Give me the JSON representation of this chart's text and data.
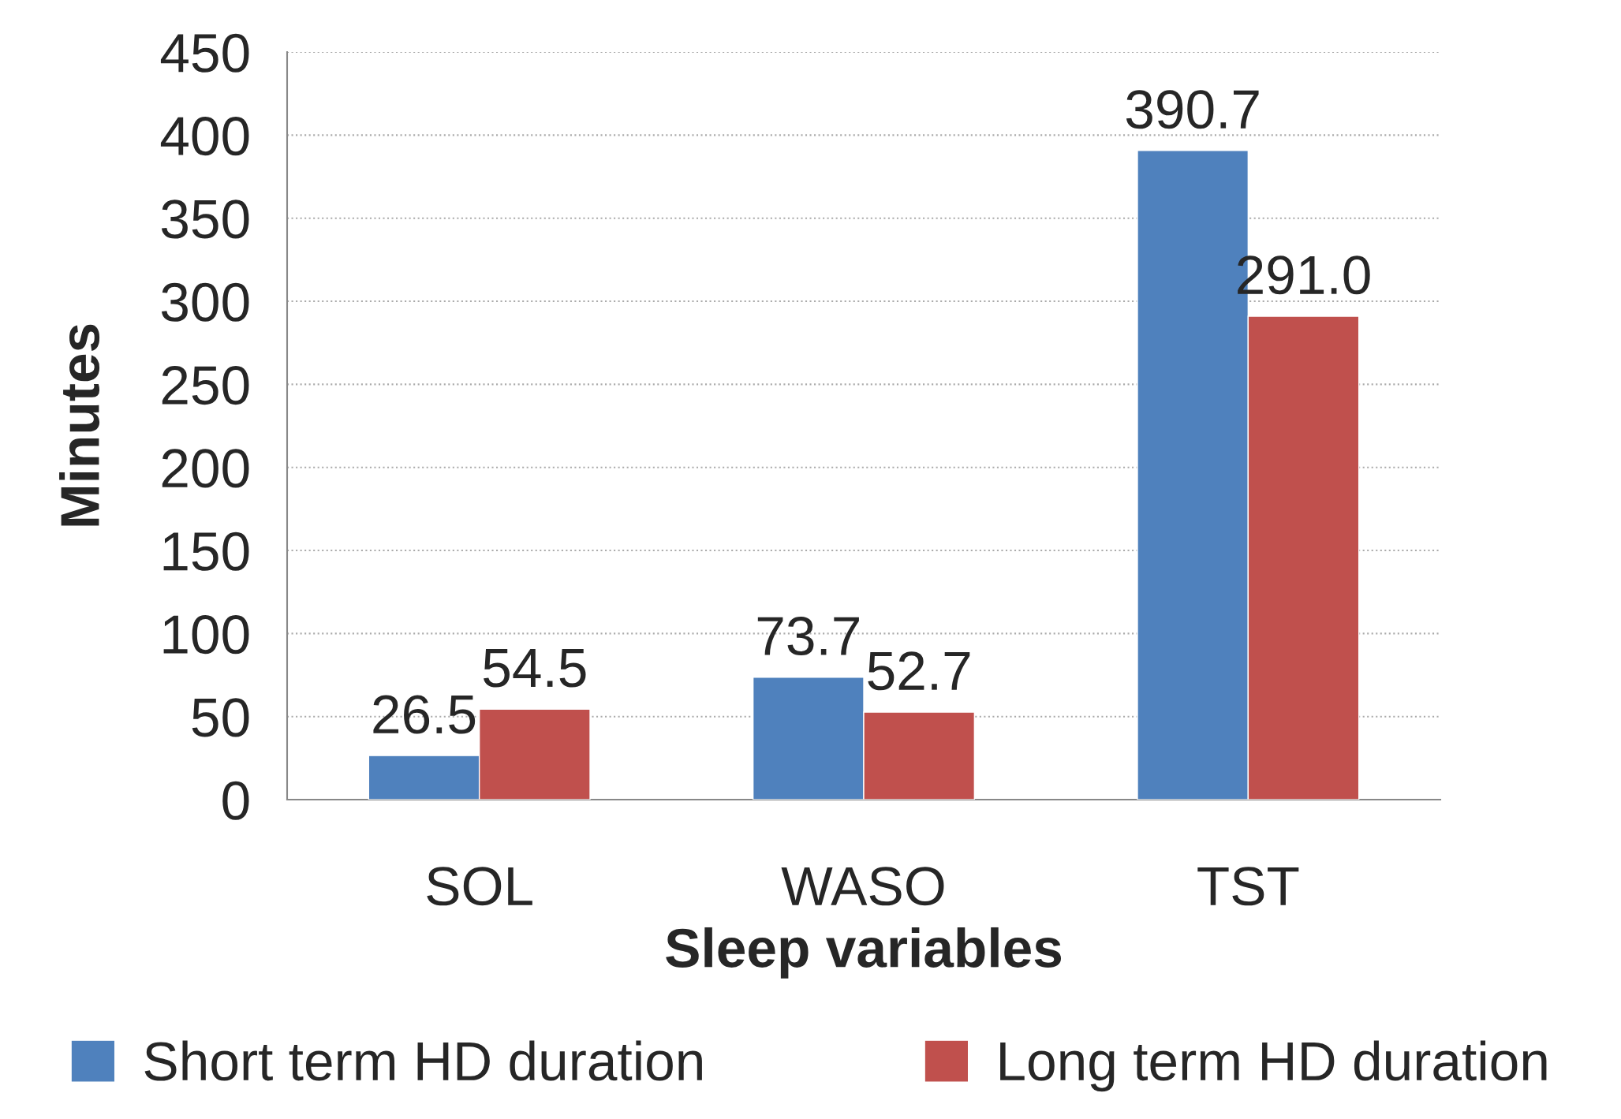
{
  "chart_data": {
    "type": "bar",
    "xlabel": "Sleep variables",
    "ylabel": "Minutes",
    "categories": [
      "SOL",
      "WASO",
      "TST"
    ],
    "series": [
      {
        "name": "Short term HD duration",
        "color": "#4f81bd",
        "values": [
          26.5,
          73.7,
          390.7
        ],
        "value_labels": [
          "26.5",
          "73.7",
          "390.7"
        ]
      },
      {
        "name": "Long term HD duration",
        "color": "#c0504d",
        "values": [
          54.5,
          52.7,
          291.0
        ],
        "value_labels": [
          "54.5",
          "52.7",
          "291.0"
        ]
      }
    ],
    "ylim": [
      0,
      450
    ],
    "yticks": [
      0,
      50,
      100,
      150,
      200,
      250,
      300,
      350,
      400,
      450
    ],
    "grid": "y",
    "legend": "bottom"
  }
}
